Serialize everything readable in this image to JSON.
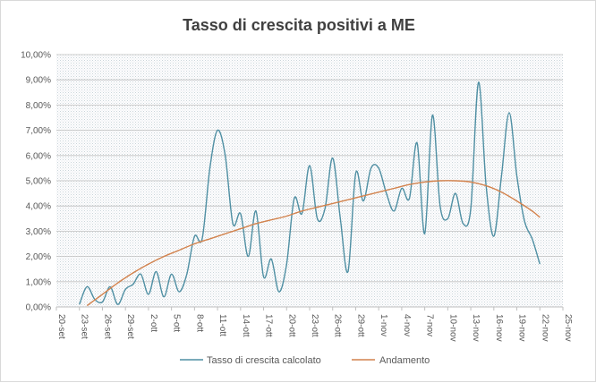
{
  "chart_data": {
    "type": "line",
    "title": "Tasso di crescita positivi a ME",
    "xlabel": "",
    "ylabel": "",
    "ylim": [
      0,
      10
    ],
    "y_ticks": [
      "0,00%",
      "1,00%",
      "2,00%",
      "3,00%",
      "4,00%",
      "5,00%",
      "6,00%",
      "7,00%",
      "8,00%",
      "9,00%",
      "10,00%"
    ],
    "x_ticks": [
      "20-set",
      "23-set",
      "26-set",
      "29-set",
      "2-ott",
      "5-ott",
      "8-ott",
      "11-ott",
      "14-ott",
      "17-ott",
      "20-ott",
      "23-ott",
      "26-ott",
      "29-ott",
      "1-nov",
      "4-nov",
      "7-nov",
      "10-nov",
      "13-nov",
      "16-nov",
      "19-nov",
      "22-nov",
      "25-nov"
    ],
    "x_range_days": [
      0,
      66
    ],
    "legend_position": "bottom",
    "series": [
      {
        "name": "Tasso di crescita calcolato",
        "color": "#4f8fa3",
        "x": [
          3,
          4,
          5,
          6,
          7,
          8,
          9,
          10,
          11,
          12,
          13,
          14,
          15,
          16,
          17,
          18,
          19,
          20,
          21,
          22,
          23,
          24,
          25,
          26,
          27,
          28,
          29,
          30,
          31,
          32,
          33,
          34,
          35,
          36,
          37,
          38,
          39,
          40,
          41,
          42,
          43,
          44,
          45,
          46,
          47,
          48,
          49,
          50,
          51,
          52,
          53,
          54,
          55,
          56,
          57,
          58,
          59,
          60,
          61,
          62,
          63
        ],
        "values": [
          0.1,
          0.8,
          0.3,
          0.2,
          0.8,
          0.1,
          0.7,
          0.9,
          1.3,
          0.5,
          1.4,
          0.4,
          1.3,
          0.6,
          1.3,
          2.8,
          2.7,
          5.5,
          7.0,
          6.0,
          3.3,
          3.7,
          2.0,
          3.8,
          1.2,
          1.9,
          0.6,
          1.7,
          4.3,
          3.7,
          5.6,
          3.5,
          3.9,
          5.9,
          3.5,
          1.4,
          5.3,
          4.2,
          5.5,
          5.5,
          4.5,
          3.8,
          4.7,
          4.3,
          6.5,
          2.9,
          7.6,
          4.0,
          3.5,
          4.5,
          3.3,
          3.9,
          8.9,
          4.8,
          2.8,
          5.2,
          7.7,
          5.2,
          3.4,
          2.7,
          1.7
        ]
      },
      {
        "name": "Andamento",
        "color": "#d2824d",
        "x": [
          4,
          6,
          8,
          10,
          12,
          14,
          16,
          18,
          20,
          22,
          24,
          26,
          28,
          30,
          32,
          34,
          36,
          38,
          40,
          42,
          44,
          46,
          48,
          50,
          52,
          54,
          56,
          58,
          60,
          62,
          63
        ],
        "values": [
          0.05,
          0.5,
          0.95,
          1.35,
          1.7,
          2.0,
          2.25,
          2.5,
          2.7,
          2.9,
          3.1,
          3.3,
          3.45,
          3.6,
          3.8,
          3.95,
          4.1,
          4.25,
          4.4,
          4.55,
          4.7,
          4.85,
          4.95,
          5.0,
          5.0,
          4.95,
          4.8,
          4.55,
          4.2,
          3.8,
          3.55
        ]
      }
    ]
  }
}
